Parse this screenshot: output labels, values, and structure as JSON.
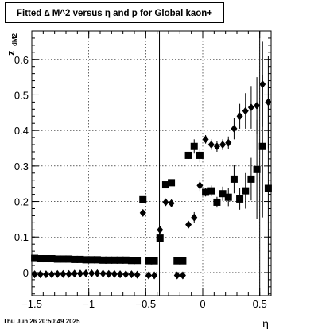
{
  "chart_data": {
    "type": "scatter",
    "title": "Fitted ∆ M^2 versus η and p for Global kaon+",
    "xlabel": "η",
    "ylabel": "z",
    "ylabel_sub": "dM2",
    "footer": "Thu Jun 26 20:50:49 2025",
    "xlim": [
      -1.5,
      0.6
    ],
    "ylim": [
      -0.065,
      0.68
    ],
    "x_ticks": [
      {
        "v": -1.5,
        "label": "−1.5"
      },
      {
        "v": -1.0,
        "label": "−1"
      },
      {
        "v": -0.5,
        "label": "−0.5"
      },
      {
        "v": 0.0,
        "label": "0"
      },
      {
        "v": 0.5,
        "label": "0.5"
      }
    ],
    "y_ticks": [
      {
        "v": 0.0,
        "label": "0"
      },
      {
        "v": 0.1,
        "label": "0.1"
      },
      {
        "v": 0.2,
        "label": "0.2"
      },
      {
        "v": 0.3,
        "label": "0.3"
      },
      {
        "v": 0.4,
        "label": "0.4"
      },
      {
        "v": 0.5,
        "label": "0.5"
      },
      {
        "v": 0.6,
        "label": "0.6"
      }
    ],
    "grid": true,
    "vlines": [
      -0.38,
      0.5
    ],
    "series": [
      {
        "marker": "square",
        "x": [
          -1.475,
          -1.425,
          -1.375,
          -1.325,
          -1.275,
          -1.225,
          -1.175,
          -1.125,
          -1.075,
          -1.025,
          -0.975,
          -0.925,
          -0.875,
          -0.825,
          -0.775,
          -0.725,
          -0.675,
          -0.625,
          -0.575,
          -0.525,
          -0.475,
          -0.425,
          -0.375,
          -0.325,
          -0.275,
          -0.225,
          -0.175,
          -0.125,
          -0.075,
          -0.025,
          0.025,
          0.075,
          0.125,
          0.175,
          0.225,
          0.275,
          0.325,
          0.375,
          0.425,
          0.475,
          0.525,
          0.575
        ],
        "y": [
          0.04,
          0.039,
          0.039,
          0.039,
          0.038,
          0.038,
          0.038,
          0.037,
          0.037,
          0.036,
          0.036,
          0.036,
          0.035,
          0.035,
          0.035,
          0.035,
          0.035,
          0.034,
          0.034,
          0.205,
          0.033,
          0.033,
          0.097,
          0.247,
          0.253,
          0.033,
          0.033,
          0.33,
          0.355,
          0.33,
          0.226,
          0.23,
          0.198,
          0.222,
          0.212,
          0.263,
          0.207,
          0.23,
          0.263,
          0.29,
          0.355,
          0.237
        ],
        "err": [
          0,
          0,
          0,
          0,
          0,
          0,
          0,
          0,
          0,
          0,
          0,
          0,
          0,
          0,
          0,
          0,
          0,
          0,
          0,
          0,
          0,
          0,
          0,
          0,
          0,
          0,
          0,
          0.01,
          0.02,
          0.02,
          0.012,
          0.015,
          0.015,
          0.02,
          0.025,
          0.04,
          0.03,
          0.05,
          0.06,
          0.14,
          0.2,
          0.3
        ]
      },
      {
        "marker": "diamond",
        "x": [
          -1.475,
          -1.425,
          -1.375,
          -1.325,
          -1.275,
          -1.225,
          -1.175,
          -1.125,
          -1.075,
          -1.025,
          -0.975,
          -0.925,
          -0.875,
          -0.825,
          -0.775,
          -0.725,
          -0.675,
          -0.625,
          -0.575,
          -0.525,
          -0.475,
          -0.425,
          -0.375,
          -0.325,
          -0.275,
          -0.225,
          -0.175,
          -0.125,
          -0.075,
          -0.025,
          0.025,
          0.075,
          0.125,
          0.175,
          0.225,
          0.275,
          0.325,
          0.375,
          0.425,
          0.475,
          0.525,
          0.575
        ],
        "y": [
          -0.005,
          -0.005,
          -0.005,
          -0.005,
          -0.004,
          -0.004,
          -0.004,
          -0.003,
          -0.003,
          -0.002,
          -0.002,
          -0.002,
          -0.003,
          -0.004,
          -0.004,
          -0.005,
          -0.005,
          -0.005,
          -0.006,
          0.168,
          -0.008,
          -0.008,
          0.12,
          0.198,
          0.195,
          -0.008,
          -0.008,
          0.135,
          0.155,
          0.245,
          0.375,
          0.36,
          0.355,
          0.36,
          0.365,
          0.405,
          0.44,
          0.455,
          0.465,
          0.47,
          0.53,
          0.48
        ],
        "err": [
          0,
          0,
          0,
          0,
          0,
          0,
          0,
          0,
          0,
          0,
          0,
          0,
          0,
          0,
          0,
          0,
          0,
          0,
          0,
          0,
          0,
          0,
          0,
          0,
          0,
          0,
          0,
          0.01,
          0.015,
          0.015,
          0.012,
          0.015,
          0.015,
          0.015,
          0.018,
          0.03,
          0.035,
          0.05,
          0.06,
          0.08,
          0.12,
          0.13
        ]
      }
    ]
  }
}
